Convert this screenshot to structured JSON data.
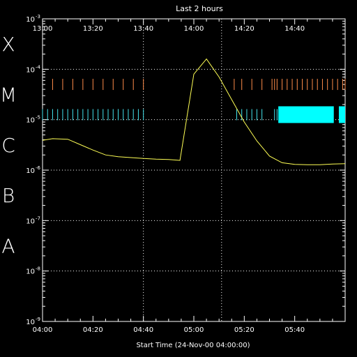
{
  "chart_data": {
    "type": "line",
    "title": "Last 2 hours",
    "xlabel": "Start Time (24-Nov-00 04:00:00)",
    "ylabel": "",
    "yscale": "log",
    "x_unit": "minutes from start",
    "x_range": [
      0,
      120
    ],
    "ylim_exponents": [
      -9,
      -3
    ],
    "bottom_ticks": [
      {
        "t": 0,
        "label": "04:00"
      },
      {
        "t": 20,
        "label": "04:20"
      },
      {
        "t": 40,
        "label": "04:40"
      },
      {
        "t": 60,
        "label": "05:00"
      },
      {
        "t": 80,
        "label": "05:20"
      },
      {
        "t": 100,
        "label": "05:40"
      }
    ],
    "top_ticks": [
      {
        "t": 0,
        "label": "13:00"
      },
      {
        "t": 20,
        "label": "13:20"
      },
      {
        "t": 40,
        "label": "13:40"
      },
      {
        "t": 60,
        "label": "14:00"
      },
      {
        "t": 80,
        "label": "14:20"
      },
      {
        "t": 100,
        "label": "14:40"
      }
    ],
    "dotted_vlines": [
      40,
      71
    ],
    "y_tick_labels": [
      {
        "exp": -9,
        "label": "10",
        "sup": "-9"
      },
      {
        "exp": -8,
        "label": "10",
        "sup": "-8"
      },
      {
        "exp": -7,
        "label": "10",
        "sup": "-7"
      },
      {
        "exp": -6,
        "label": "10",
        "sup": "-6"
      },
      {
        "exp": -5,
        "label": "10",
        "sup": "-5"
      },
      {
        "exp": -4,
        "label": "10",
        "sup": "-4"
      },
      {
        "exp": -3,
        "label": "10",
        "sup": "-3"
      }
    ],
    "flare_classes": [
      {
        "label": "A",
        "exp": -8
      },
      {
        "label": "B",
        "exp": -7
      },
      {
        "label": "C",
        "exp": -6
      },
      {
        "label": "M",
        "exp": -5
      },
      {
        "label": "X",
        "exp": -4
      }
    ],
    "series": [
      {
        "color": "#ffff55",
        "x": [
          0,
          4,
          10,
          15,
          20,
          25,
          30,
          40,
          45,
          50,
          54.5,
          60,
          65,
          70,
          75,
          80,
          85,
          90,
          95,
          100,
          105,
          110,
          115,
          120
        ],
        "y": [
          3.9e-06,
          4.2e-06,
          4.1e-06,
          3.2e-06,
          2.5e-06,
          2e-06,
          1.85e-06,
          1.7e-06,
          1.65e-06,
          1.62e-06,
          1.56e-06,
          8e-05,
          0.00016,
          7e-05,
          2.5e-05,
          9e-06,
          3.8e-06,
          1.9e-06,
          1.4e-06,
          1.3e-06,
          1.28e-06,
          1.28e-06,
          1.32e-06,
          1.34e-06
        ]
      }
    ],
    "event_marks": [
      {
        "color": "#ff8c4a",
        "level_exp": -4.3,
        "times": [
          4,
          8,
          12,
          16,
          20,
          24,
          28,
          32,
          36,
          40,
          76,
          79,
          83,
          87,
          91,
          92,
          93,
          95,
          97,
          99,
          101,
          103,
          105,
          107,
          109,
          111,
          113,
          115,
          117,
          119,
          120
        ]
      },
      {
        "color": "#44e4ee",
        "level_exp": -4.9,
        "times": [
          0,
          2,
          4,
          6,
          8,
          10,
          12,
          14,
          16,
          18,
          20,
          22,
          24,
          26,
          28,
          30,
          32,
          34,
          36,
          38,
          40,
          77,
          79,
          81,
          83,
          85,
          87,
          92,
          93
        ]
      }
    ],
    "event_fill": {
      "color": "#00ffff",
      "level_exp": -4.9,
      "ranges": [
        [
          93.5,
          115.5
        ],
        [
          117.5,
          120
        ]
      ]
    }
  }
}
